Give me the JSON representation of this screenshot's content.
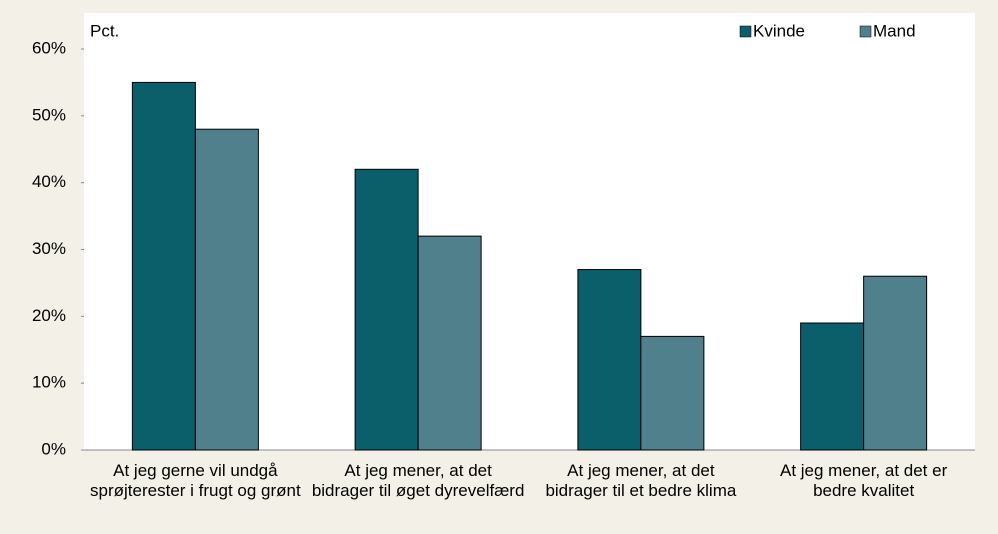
{
  "chart_data": {
    "type": "bar",
    "y_label": "Pct.",
    "categories": [
      "At jeg gerne vil undgå sprøjterester i frugt og grønt",
      "At jeg mener, at det bidrager til øget dyrevelfærd",
      "At jeg mener, at det bidrager til et bedre klima",
      "At jeg mener, at det er bedre kvalitet"
    ],
    "series": [
      {
        "name": "Kvinde",
        "color": "#0b5f6b",
        "values": [
          55,
          42,
          27,
          19
        ]
      },
      {
        "name": "Mand",
        "color": "#4f808c",
        "values": [
          48,
          32,
          17,
          26
        ]
      }
    ],
    "ylim": [
      0,
      60
    ],
    "yticks": [
      {
        "value": 0,
        "label": "0%"
      },
      {
        "value": 10,
        "label": "10%"
      },
      {
        "value": 20,
        "label": "20%"
      },
      {
        "value": 30,
        "label": "30%"
      },
      {
        "value": 40,
        "label": "40%"
      },
      {
        "value": 50,
        "label": "50%"
      },
      {
        "value": 60,
        "label": "60%"
      }
    ],
    "legend": "top-right"
  }
}
